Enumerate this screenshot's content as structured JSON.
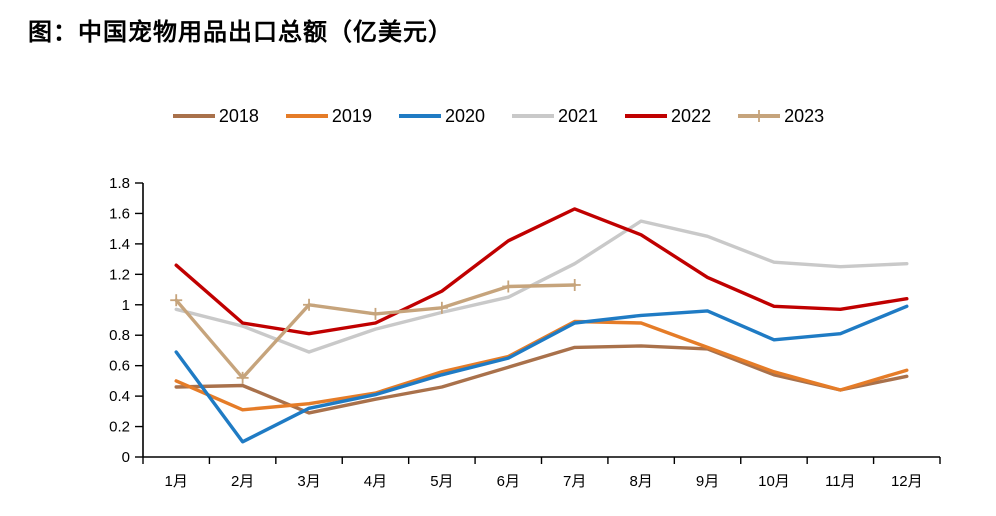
{
  "title": "图：中国宠物用品出口总额（亿美元）",
  "chart_data": {
    "type": "line",
    "title": "图：中国宠物用品出口总额（亿美元）",
    "xlabel": "",
    "ylabel": "",
    "categories": [
      "1月",
      "2月",
      "3月",
      "4月",
      "5月",
      "6月",
      "7月",
      "8月",
      "9月",
      "10月",
      "11月",
      "12月"
    ],
    "series": [
      {
        "name": "2018",
        "color": "#A9714B",
        "marker": "none",
        "values": [
          0.46,
          0.47,
          0.29,
          0.38,
          0.46,
          0.59,
          0.72,
          0.73,
          0.71,
          0.54,
          0.44,
          0.53
        ]
      },
      {
        "name": "2019",
        "color": "#E57C28",
        "marker": "none",
        "values": [
          0.5,
          0.31,
          0.35,
          0.42,
          0.56,
          0.66,
          0.89,
          0.88,
          0.72,
          0.56,
          0.44,
          0.57
        ]
      },
      {
        "name": "2020",
        "color": "#1F7BC4",
        "marker": "none",
        "values": [
          0.69,
          0.1,
          0.32,
          0.41,
          0.54,
          0.65,
          0.88,
          0.93,
          0.96,
          0.77,
          0.81,
          0.99
        ]
      },
      {
        "name": "2021",
        "color": "#C9C9C9",
        "marker": "none",
        "values": [
          0.97,
          0.86,
          0.69,
          0.84,
          0.95,
          1.05,
          1.27,
          1.55,
          1.45,
          1.28,
          1.25,
          1.27
        ]
      },
      {
        "name": "2022",
        "color": "#C00000",
        "marker": "none",
        "values": [
          1.26,
          0.88,
          0.81,
          0.88,
          1.09,
          1.42,
          1.63,
          1.46,
          1.18,
          0.99,
          0.97,
          1.04
        ]
      },
      {
        "name": "2023",
        "color": "#C6A47C",
        "marker": "plus",
        "values": [
          1.03,
          0.52,
          1.0,
          0.94,
          0.98,
          1.12,
          1.13
        ]
      }
    ],
    "ylim": [
      0,
      1.8
    ],
    "ytick_step": 0.2,
    "ytick_labels": [
      "0",
      "0.2",
      "0.4",
      "0.6",
      "0.8",
      "1",
      "1.2",
      "1.4",
      "1.6",
      "1.8"
    ],
    "legend_position": "top",
    "grid": false,
    "axis_color": "#000000"
  }
}
